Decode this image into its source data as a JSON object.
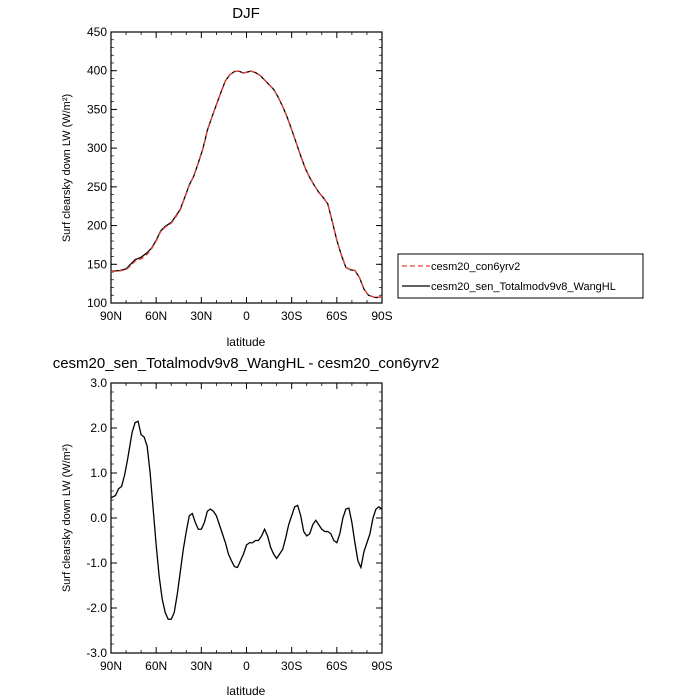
{
  "chart_data": [
    {
      "type": "line",
      "title": "DJF",
      "xlabel": "latitude",
      "ylabel": "Surf clearsky down LW (W/m²)",
      "xlim": [
        90,
        -90
      ],
      "ylim": [
        100,
        450
      ],
      "xticks": [
        90,
        60,
        30,
        0,
        -30,
        -60,
        -90
      ],
      "xtick_labels": [
        "90N",
        "60N",
        "30N",
        "0",
        "30S",
        "60S",
        "90S"
      ],
      "yticks": [
        100,
        150,
        200,
        250,
        300,
        350,
        400,
        450
      ],
      "ytick_labels": [
        "100",
        "150",
        "200",
        "250",
        "300",
        "350",
        "400",
        "450"
      ],
      "legend_position": "right",
      "series": [
        {
          "name": "cesm20_con6yrv2",
          "color": "#e8413a",
          "dash": true,
          "x": [
            90,
            84,
            80,
            77,
            74,
            70,
            66,
            63,
            60,
            57,
            54,
            50,
            47,
            44,
            41,
            38,
            35,
            32,
            29,
            26,
            23,
            20,
            17,
            14,
            11,
            8,
            5,
            2,
            0,
            -3,
            -6,
            -9,
            -12,
            -15,
            -18,
            -21,
            -24,
            -27,
            -30,
            -33,
            -36,
            -39,
            -42,
            -45,
            -48,
            -51,
            -54,
            -57,
            -60,
            -63,
            -66,
            -69,
            -72,
            -75,
            -78,
            -81,
            -84,
            -86,
            -88,
            -90
          ],
          "y": [
            140.5,
            141.5,
            143,
            148,
            154,
            157,
            163,
            170,
            180,
            192,
            198,
            203,
            211,
            220,
            236,
            252,
            264,
            281,
            299,
            323,
            340,
            356,
            372,
            387,
            395,
            399,
            399.5,
            397,
            398,
            399.5,
            397.5,
            394,
            388,
            382,
            376,
            366,
            354,
            340,
            324,
            307,
            290,
            274,
            262,
            252,
            243,
            236,
            228,
            205,
            181,
            162,
            146,
            143,
            142,
            133,
            118,
            110,
            108,
            107,
            107.5,
            108
          ]
        },
        {
          "name": "cesm20_sen_Totalmodv9v8_WangHL",
          "color": "#000000",
          "dash": false,
          "x": [
            90,
            84,
            80,
            77,
            74,
            70,
            66,
            63,
            60,
            57,
            54,
            50,
            47,
            44,
            41,
            38,
            35,
            32,
            29,
            26,
            23,
            20,
            17,
            14,
            11,
            8,
            5,
            2,
            0,
            -3,
            -6,
            -9,
            -12,
            -15,
            -18,
            -21,
            -24,
            -27,
            -30,
            -33,
            -36,
            -39,
            -42,
            -45,
            -48,
            -51,
            -54,
            -57,
            -60,
            -63,
            -66,
            -69,
            -72,
            -75,
            -78,
            -81,
            -84,
            -86,
            -88,
            -90
          ],
          "y": [
            141,
            142,
            144,
            150,
            156,
            159,
            165,
            171,
            181,
            193,
            199,
            204,
            212,
            221,
            236.5,
            252.5,
            264,
            281,
            299,
            323,
            340,
            356,
            372,
            387,
            395,
            399,
            399.5,
            397,
            398,
            399.5,
            397.5,
            394,
            388,
            382,
            376,
            366,
            354,
            340,
            324,
            307,
            290,
            274,
            262,
            252,
            243,
            236,
            228,
            205,
            181,
            162,
            146,
            143,
            142,
            133,
            118,
            110,
            108,
            107,
            107.5,
            108
          ]
        }
      ]
    },
    {
      "type": "line",
      "title": "cesm20_sen_Totalmodv9v8_WangHL - cesm20_con6yrv2",
      "xlabel": "latitude",
      "ylabel": "Surf clearsky down LW (W/m²)",
      "xlim": [
        90,
        -90
      ],
      "ylim": [
        -3,
        3
      ],
      "xticks": [
        90,
        60,
        30,
        0,
        -30,
        -60,
        -90
      ],
      "xtick_labels": [
        "90N",
        "60N",
        "30N",
        "0",
        "30S",
        "60S",
        "90S"
      ],
      "yticks": [
        -3,
        -2,
        -1,
        0,
        1,
        2,
        3
      ],
      "ytick_labels": [
        "-3.0",
        "-2.0",
        "-1.0",
        "0.0",
        "1.0",
        "2.0",
        "3.0"
      ],
      "series": [
        {
          "color": "#000000",
          "dash": false,
          "x": [
            90,
            87,
            85,
            83,
            81,
            79,
            76,
            74,
            72,
            70,
            68,
            66,
            64,
            62,
            60,
            58,
            56,
            54,
            52,
            50,
            48,
            46,
            44,
            42,
            40,
            38,
            36,
            34,
            32,
            30,
            28,
            26,
            24,
            22,
            20,
            18,
            16,
            14,
            12,
            10,
            8,
            6,
            4,
            2,
            0,
            -2,
            -4,
            -6,
            -8,
            -10,
            -12,
            -14,
            -16,
            -18,
            -20,
            -22,
            -24,
            -26,
            -28,
            -30,
            -32,
            -34,
            -36,
            -38,
            -40,
            -42,
            -44,
            -46,
            -48,
            -50,
            -52,
            -54,
            -56,
            -58,
            -60,
            -62,
            -64,
            -66,
            -68,
            -70,
            -72,
            -74,
            -76,
            -78,
            -80,
            -82,
            -84,
            -86,
            -88,
            -90
          ],
          "y": [
            0.45,
            0.5,
            0.65,
            0.7,
            0.95,
            1.3,
            1.9,
            2.12,
            2.15,
            1.85,
            1.8,
            1.6,
            1.0,
            0.2,
            -0.6,
            -1.3,
            -1.8,
            -2.1,
            -2.25,
            -2.25,
            -2.1,
            -1.7,
            -1.2,
            -0.7,
            -0.3,
            0.05,
            0.1,
            -0.1,
            -0.25,
            -0.25,
            -0.1,
            0.15,
            0.2,
            0.15,
            0.05,
            -0.15,
            -0.35,
            -0.55,
            -0.8,
            -0.95,
            -1.08,
            -1.1,
            -0.95,
            -0.8,
            -0.6,
            -0.55,
            -0.55,
            -0.5,
            -0.5,
            -0.4,
            -0.25,
            -0.4,
            -0.65,
            -0.8,
            -0.9,
            -0.8,
            -0.7,
            -0.45,
            -0.15,
            0.05,
            0.25,
            0.28,
            0.05,
            -0.3,
            -0.4,
            -0.35,
            -0.15,
            -0.05,
            -0.15,
            -0.25,
            -0.3,
            -0.3,
            -0.35,
            -0.5,
            -0.55,
            -0.35,
            0.0,
            0.2,
            0.22,
            -0.1,
            -0.55,
            -0.95,
            -1.1,
            -0.75,
            -0.55,
            -0.35,
            0.0,
            0.2,
            0.25,
            0.2
          ]
        }
      ]
    }
  ]
}
